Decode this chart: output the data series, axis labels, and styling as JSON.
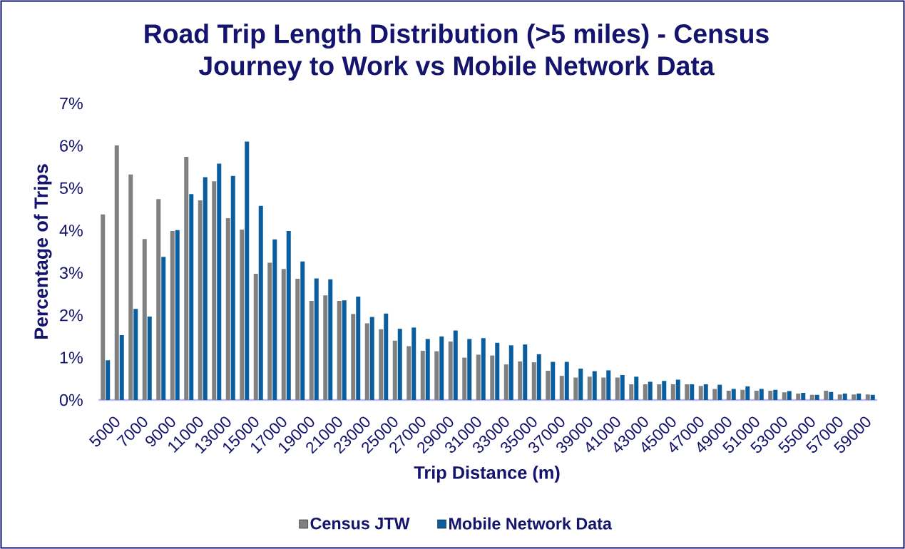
{
  "chart_data": {
    "type": "bar",
    "title": "Road Trip Length Distribution (>5 miles) - Census Journey to Work vs Mobile Network Data",
    "xlabel": "Trip Distance (m)",
    "ylabel": "Percentage of Trips",
    "categories": [
      "5000",
      null,
      "7000",
      null,
      "9000",
      null,
      "11000",
      null,
      "13000",
      null,
      "15000",
      null,
      "17000",
      null,
      "19000",
      null,
      "21000",
      null,
      "23000",
      null,
      "25000",
      null,
      "27000",
      null,
      "29000",
      null,
      "31000",
      null,
      "33000",
      null,
      "35000",
      null,
      "37000",
      null,
      "39000",
      null,
      "41000",
      null,
      "43000",
      null,
      "45000",
      null,
      "47000",
      null,
      "49000",
      null,
      "51000",
      null,
      "53000",
      null,
      "55000",
      null,
      "57000",
      null,
      "59000",
      null
    ],
    "series": [
      {
        "name": "Census JTW",
        "color": "#808080",
        "values": [
          4.38,
          6.01,
          5.32,
          3.8,
          4.74,
          3.99,
          5.74,
          4.71,
          5.16,
          4.29,
          4.02,
          2.98,
          3.24,
          3.09,
          2.86,
          2.34,
          2.47,
          2.34,
          2.03,
          1.81,
          1.67,
          1.4,
          1.27,
          1.16,
          1.15,
          1.38,
          1.0,
          1.07,
          1.05,
          0.84,
          0.91,
          0.89,
          0.69,
          0.57,
          0.53,
          0.55,
          0.53,
          0.53,
          0.37,
          0.37,
          0.37,
          0.37,
          0.37,
          0.33,
          0.26,
          0.22,
          0.24,
          0.22,
          0.22,
          0.18,
          0.15,
          0.12,
          0.22,
          0.13,
          0.13,
          0.13
        ]
      },
      {
        "name": "Mobile Network Data",
        "color": "#0B5E9E",
        "values": [
          0.94,
          1.53,
          2.15,
          1.97,
          3.38,
          4.01,
          4.86,
          5.26,
          5.58,
          5.29,
          6.1,
          4.58,
          3.79,
          3.99,
          3.27,
          2.87,
          2.85,
          2.35,
          2.44,
          1.96,
          2.04,
          1.68,
          1.71,
          1.44,
          1.5,
          1.64,
          1.44,
          1.46,
          1.35,
          1.29,
          1.31,
          1.08,
          0.9,
          0.9,
          0.74,
          0.68,
          0.7,
          0.59,
          0.55,
          0.43,
          0.45,
          0.48,
          0.37,
          0.37,
          0.36,
          0.26,
          0.32,
          0.26,
          0.24,
          0.21,
          0.17,
          0.12,
          0.19,
          0.15,
          0.15,
          0.12
        ]
      }
    ],
    "ylim": [
      0,
      7
    ],
    "yticks": [
      {
        "value": 0,
        "label": "0%"
      },
      {
        "value": 1,
        "label": "1%"
      },
      {
        "value": 2,
        "label": "2%"
      },
      {
        "value": 3,
        "label": "3%"
      },
      {
        "value": 4,
        "label": "4%"
      },
      {
        "value": 5,
        "label": "5%"
      },
      {
        "value": 6,
        "label": "6%"
      },
      {
        "value": 7,
        "label": "7%"
      }
    ],
    "legend": "bottom"
  }
}
